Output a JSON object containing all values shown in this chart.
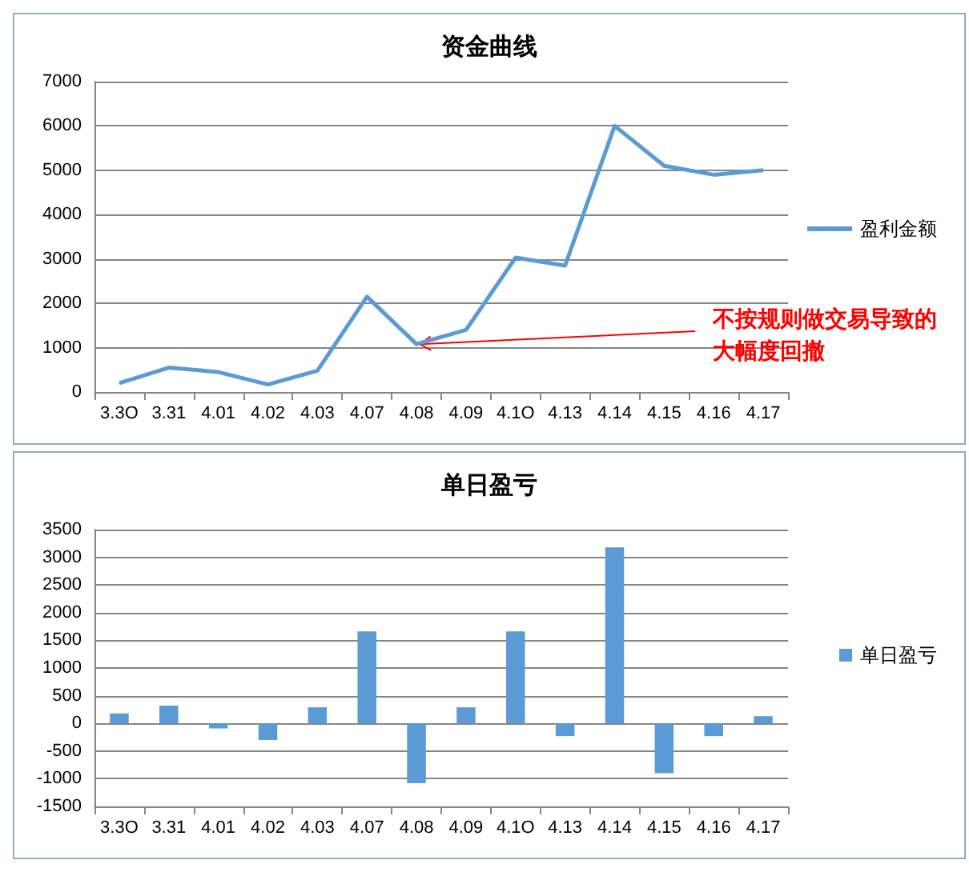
{
  "chart_data": [
    {
      "type": "line",
      "title": "资金曲线",
      "categories": [
        "3.3O",
        "3.31",
        "4.01",
        "4.02",
        "4.03",
        "4.07",
        "4.08",
        "4.09",
        "4.1O",
        "4.13",
        "4.14",
        "4.15",
        "4.16",
        "4.17"
      ],
      "series": [
        {
          "name": "盈利金额",
          "color": "#5b9bd5",
          "values": [
            200,
            550,
            450,
            170,
            480,
            2150,
            1080,
            1400,
            3030,
            2850,
            6000,
            5100,
            4900,
            5000
          ]
        }
      ],
      "ylim": [
        0,
        7000
      ],
      "yticks": [
        0,
        1000,
        2000,
        3000,
        4000,
        5000,
        6000,
        7000
      ],
      "grid": "y",
      "legend": "right",
      "marker": "none",
      "annotations": [
        {
          "text": "不按规则做交易导致的大幅度回撤",
          "x": "4.08",
          "y": 1080
        }
      ]
    },
    {
      "type": "bar",
      "title": "单日盈亏",
      "categories": [
        "3.3O",
        "3.31",
        "4.01",
        "4.02",
        "4.03",
        "4.07",
        "4.08",
        "4.09",
        "4.1O",
        "4.13",
        "4.14",
        "4.15",
        "4.16",
        "4.17"
      ],
      "series": [
        {
          "name": "单日盈亏",
          "color": "#5b9bd5",
          "values": [
            180,
            320,
            -90,
            -300,
            290,
            1660,
            -1080,
            290,
            1660,
            -230,
            3180,
            -900,
            -230,
            130
          ]
        }
      ],
      "ylim": [
        -1500,
        3500
      ],
      "yticks": [
        -1500,
        -1000,
        -500,
        0,
        500,
        1000,
        1500,
        2000,
        2500,
        3000,
        3500
      ],
      "grid": "y",
      "legend": "right"
    }
  ]
}
